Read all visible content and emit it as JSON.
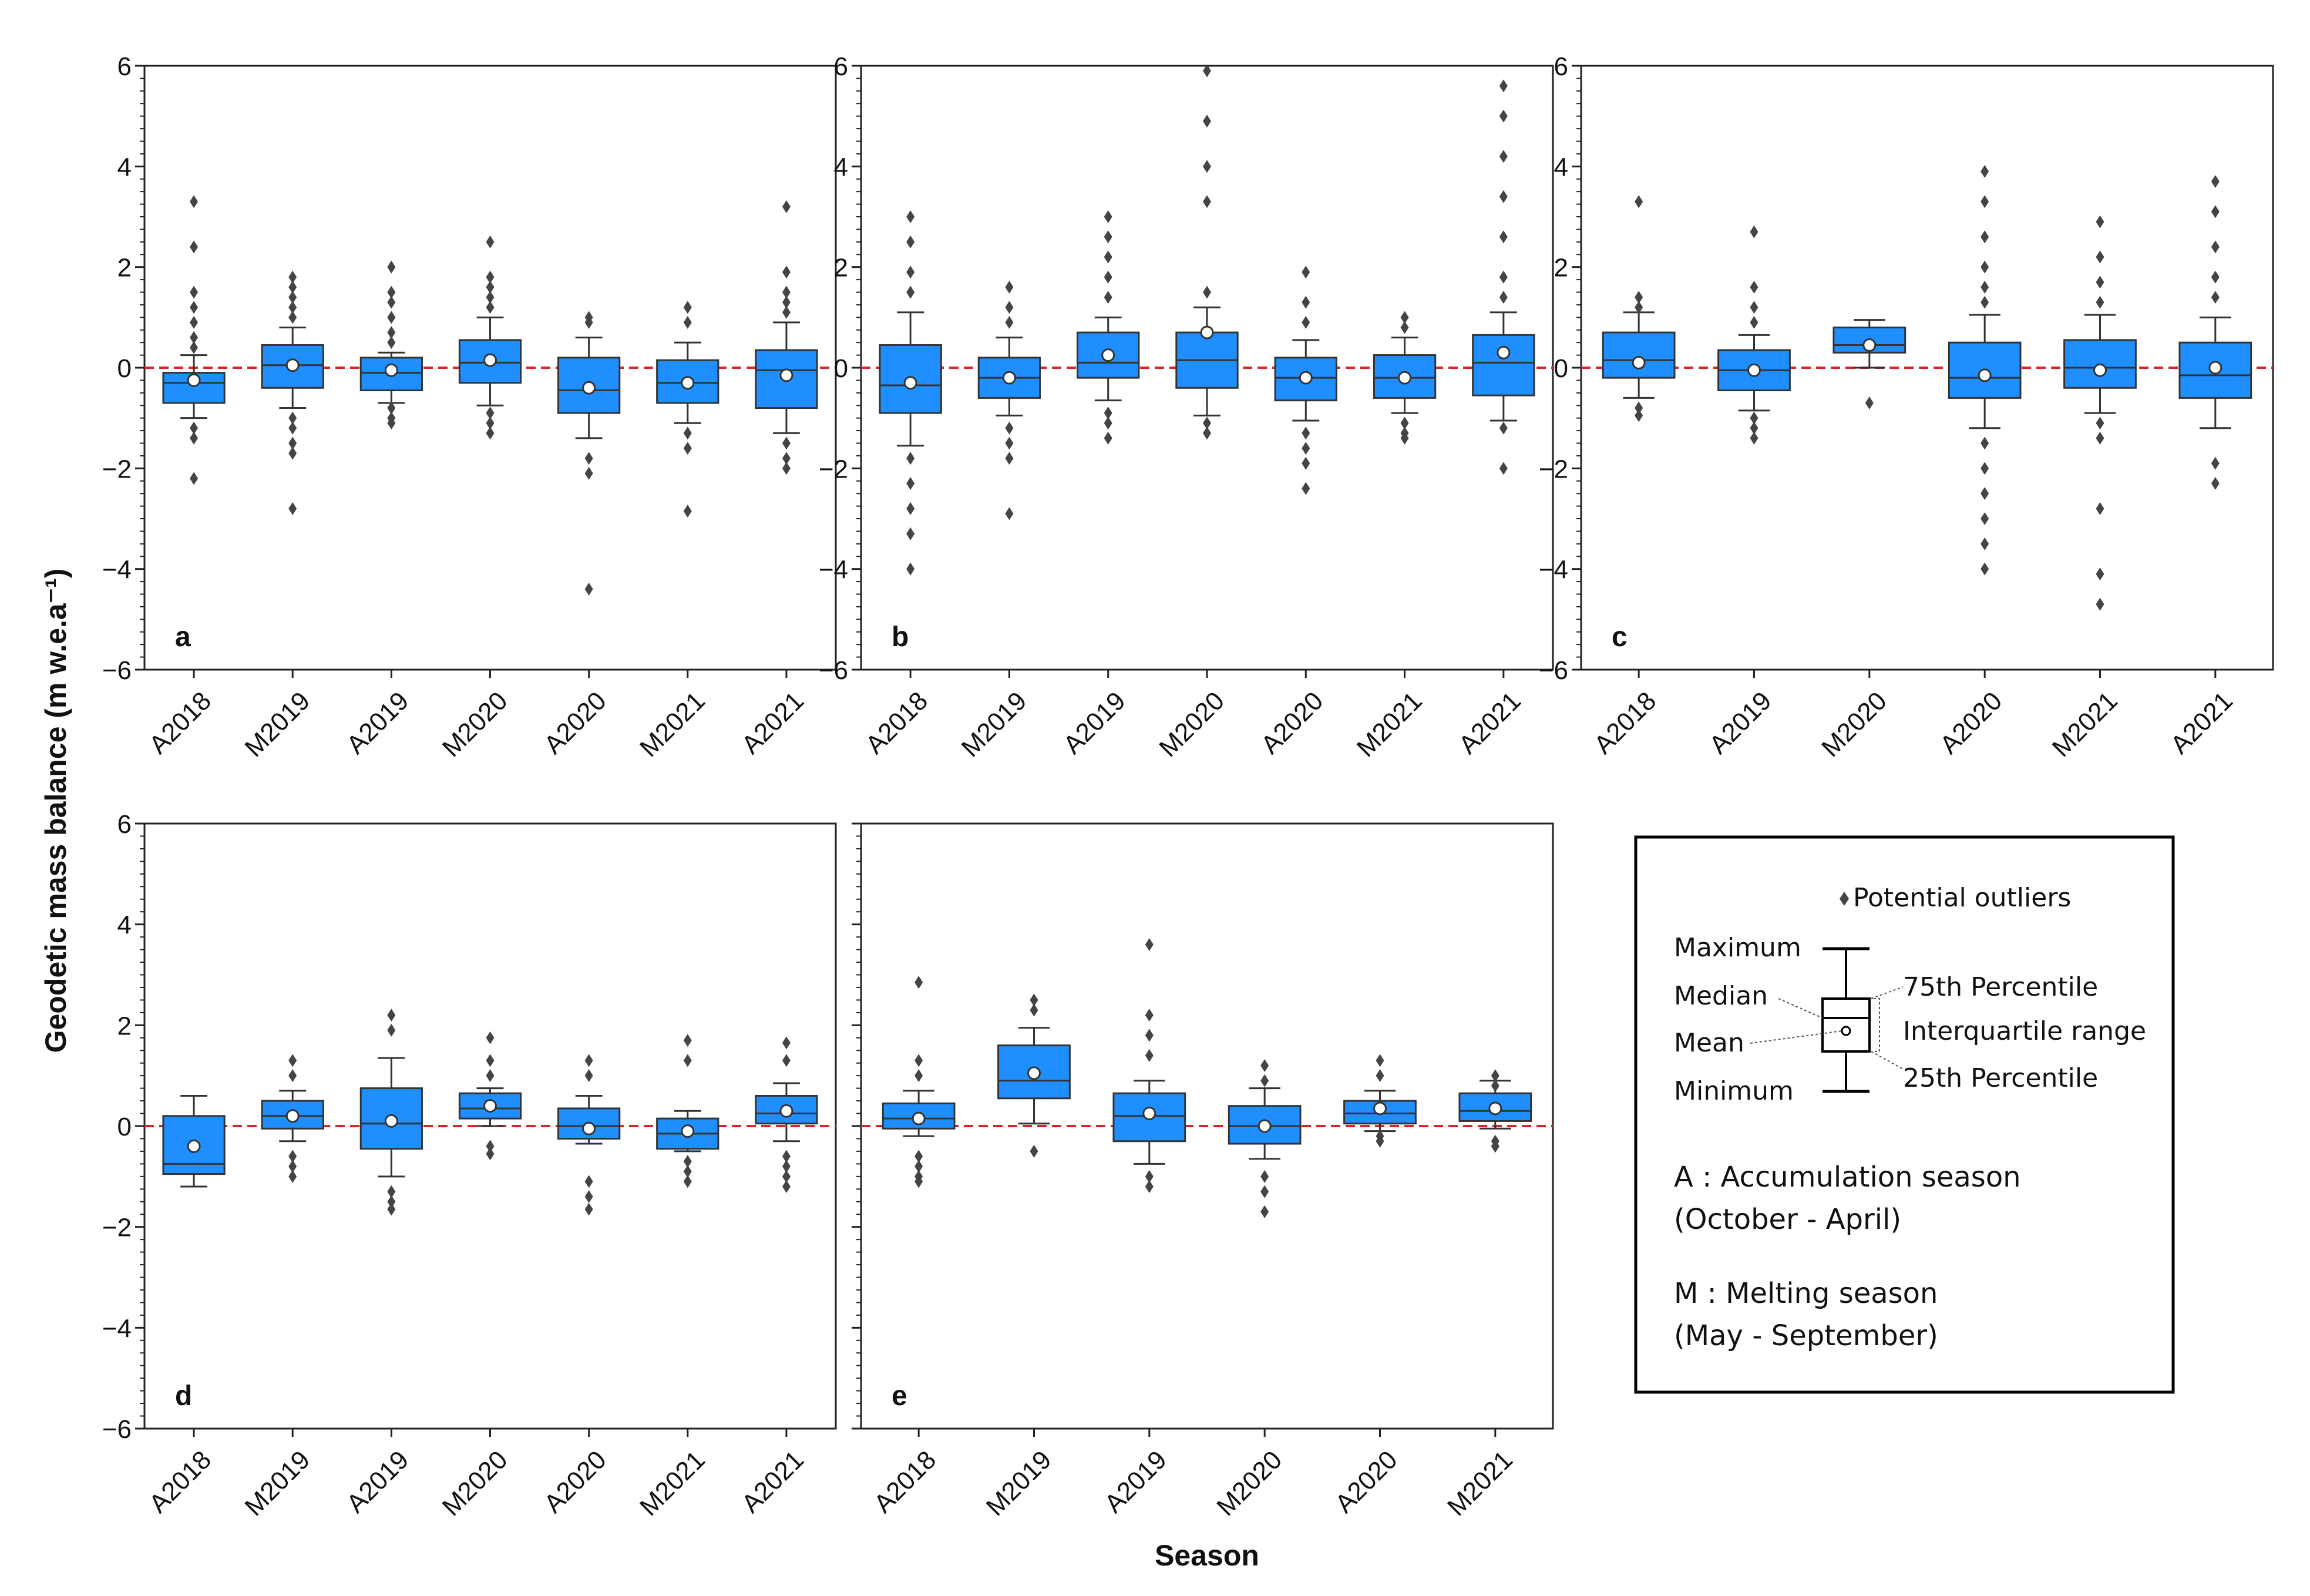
{
  "figure": {
    "ylabel": "Geodetic mass balance (m w.e.a⁻¹)",
    "xlabel": "Season",
    "legend": {
      "outliers": "Potential outliers",
      "maximum": "Maximum",
      "median": "Median",
      "mean": "Mean",
      "minimum": "Minimum",
      "p75": "75th Percentile",
      "iqr": "Interquartile range",
      "p25": "25th Percentile",
      "season_a_line1": "A : Accumulation season",
      "season_a_line2": "(October - April)",
      "season_m_line1": "M : Melting season",
      "season_m_line2": "(May - September)"
    }
  },
  "chart_data": [
    {
      "type": "box",
      "panel_label": "a",
      "ylim": [
        -6,
        6
      ],
      "yticks": [
        -6,
        -4,
        -2,
        0,
        2,
        4,
        6
      ],
      "box_color": "#1f8fff",
      "reference_line": {
        "y": 0,
        "color": "#d62728"
      },
      "categories": [
        "A2018",
        "M2019",
        "A2019",
        "M2020",
        "A2020",
        "M2021",
        "A2021"
      ],
      "boxes": [
        {
          "q1": -0.7,
          "median": -0.3,
          "q3": -0.1,
          "mean": -0.25,
          "min": -1.0,
          "max": 0.25,
          "outliers": [
            3.3,
            2.4,
            1.5,
            1.2,
            0.9,
            0.6,
            0.4,
            -1.2,
            -1.4,
            -2.2
          ]
        },
        {
          "q1": -0.4,
          "median": 0.05,
          "q3": 0.45,
          "mean": 0.05,
          "min": -0.8,
          "max": 0.8,
          "outliers": [
            1.8,
            1.6,
            1.4,
            1.2,
            1.0,
            -1.0,
            -1.2,
            -1.5,
            -1.7,
            -2.8
          ]
        },
        {
          "q1": -0.45,
          "median": -0.1,
          "q3": 0.2,
          "mean": -0.05,
          "min": -0.7,
          "max": 0.3,
          "outliers": [
            2.0,
            1.5,
            1.3,
            1.0,
            0.7,
            0.5,
            -0.8,
            -1.0,
            -1.1
          ]
        },
        {
          "q1": -0.3,
          "median": 0.1,
          "q3": 0.55,
          "mean": 0.15,
          "min": -0.75,
          "max": 1.0,
          "outliers": [
            2.5,
            1.8,
            1.6,
            1.4,
            1.2,
            -0.9,
            -1.1,
            -1.3
          ]
        },
        {
          "q1": -0.9,
          "median": -0.45,
          "q3": 0.2,
          "mean": -0.4,
          "min": -1.4,
          "max": 0.6,
          "outliers": [
            1.0,
            0.9,
            -1.8,
            -2.1,
            -4.4
          ]
        },
        {
          "q1": -0.7,
          "median": -0.3,
          "q3": 0.15,
          "mean": -0.3,
          "min": -1.1,
          "max": 0.5,
          "outliers": [
            1.2,
            0.9,
            -1.3,
            -1.6,
            -2.85
          ]
        },
        {
          "q1": -0.8,
          "median": -0.05,
          "q3": 0.35,
          "mean": -0.15,
          "min": -1.3,
          "max": 0.9,
          "outliers": [
            3.2,
            1.9,
            1.5,
            1.3,
            1.1,
            -1.5,
            -1.8,
            -2.0
          ]
        }
      ]
    },
    {
      "type": "box",
      "panel_label": "b",
      "ylim": [
        -6,
        6
      ],
      "yticks": [
        -6,
        -4,
        -2,
        0,
        2,
        4,
        6
      ],
      "box_color": "#1f8fff",
      "reference_line": {
        "y": 0,
        "color": "#d62728"
      },
      "categories": [
        "A2018",
        "M2019",
        "A2019",
        "M2020",
        "A2020",
        "M2021",
        "A2021"
      ],
      "boxes": [
        {
          "q1": -0.9,
          "median": -0.35,
          "q3": 0.45,
          "mean": -0.3,
          "min": -1.55,
          "max": 1.1,
          "outliers": [
            3.0,
            2.5,
            1.9,
            1.5,
            -1.8,
            -2.3,
            -2.8,
            -3.3,
            -4.0
          ]
        },
        {
          "q1": -0.6,
          "median": -0.2,
          "q3": 0.2,
          "mean": -0.2,
          "min": -0.95,
          "max": 0.6,
          "outliers": [
            1.6,
            1.2,
            0.9,
            -1.2,
            -1.5,
            -1.8,
            -2.9
          ]
        },
        {
          "q1": -0.2,
          "median": 0.1,
          "q3": 0.7,
          "mean": 0.25,
          "min": -0.65,
          "max": 1.0,
          "outliers": [
            3.0,
            2.6,
            2.2,
            1.8,
            1.4,
            -0.9,
            -1.1,
            -1.4
          ]
        },
        {
          "q1": -0.4,
          "median": 0.15,
          "q3": 0.7,
          "mean": 0.7,
          "min": -0.95,
          "max": 1.2,
          "outliers": [
            5.9,
            4.9,
            4.0,
            3.3,
            1.5,
            -1.1,
            -1.3
          ]
        },
        {
          "q1": -0.65,
          "median": -0.2,
          "q3": 0.2,
          "mean": -0.2,
          "min": -1.05,
          "max": 0.55,
          "outliers": [
            1.9,
            1.3,
            0.9,
            -1.3,
            -1.6,
            -1.9,
            -2.4
          ]
        },
        {
          "q1": -0.6,
          "median": -0.2,
          "q3": 0.25,
          "mean": -0.2,
          "min": -0.9,
          "max": 0.6,
          "outliers": [
            1.0,
            0.8,
            -1.1,
            -1.3,
            -1.4
          ]
        },
        {
          "q1": -0.55,
          "median": 0.1,
          "q3": 0.65,
          "mean": 0.3,
          "min": -1.05,
          "max": 1.1,
          "outliers": [
            5.6,
            5.0,
            4.2,
            3.4,
            2.6,
            1.8,
            1.4,
            -1.2,
            -2.0
          ]
        }
      ]
    },
    {
      "type": "box",
      "panel_label": "c",
      "ylim": [
        -6,
        6
      ],
      "yticks": [
        -6,
        -4,
        -2,
        0,
        2,
        4,
        6
      ],
      "box_color": "#1f8fff",
      "reference_line": {
        "y": 0,
        "color": "#d62728"
      },
      "categories": [
        "A2018",
        "A2019",
        "M2020",
        "A2020",
        "M2021",
        "A2021"
      ],
      "boxes": [
        {
          "q1": -0.2,
          "median": 0.15,
          "q3": 0.7,
          "mean": 0.1,
          "min": -0.6,
          "max": 1.1,
          "outliers": [
            3.3,
            1.4,
            1.2,
            -0.8,
            -0.95
          ]
        },
        {
          "q1": -0.45,
          "median": -0.05,
          "q3": 0.35,
          "mean": -0.05,
          "min": -0.85,
          "max": 0.65,
          "outliers": [
            2.7,
            1.6,
            1.2,
            0.9,
            -1.0,
            -1.2,
            -1.4
          ]
        },
        {
          "q1": 0.3,
          "median": 0.45,
          "q3": 0.8,
          "mean": 0.45,
          "min": 0.0,
          "max": 0.95,
          "outliers": [
            -0.7
          ]
        },
        {
          "q1": -0.6,
          "median": -0.2,
          "q3": 0.5,
          "mean": -0.15,
          "min": -1.2,
          "max": 1.05,
          "outliers": [
            3.9,
            3.3,
            2.6,
            2.0,
            1.6,
            1.3,
            -1.5,
            -2.0,
            -2.5,
            -3.0,
            -3.5,
            -4.0
          ]
        },
        {
          "q1": -0.4,
          "median": 0.0,
          "q3": 0.55,
          "mean": -0.05,
          "min": -0.9,
          "max": 1.05,
          "outliers": [
            2.9,
            2.2,
            1.7,
            1.3,
            -1.1,
            -1.4,
            -2.8,
            -4.1,
            -4.7
          ]
        },
        {
          "q1": -0.6,
          "median": -0.15,
          "q3": 0.5,
          "mean": 0.0,
          "min": -1.2,
          "max": 1.0,
          "outliers": [
            3.7,
            3.1,
            2.4,
            1.8,
            1.4,
            -1.9,
            -2.3
          ]
        }
      ]
    },
    {
      "type": "box",
      "panel_label": "d",
      "ylim": [
        -6,
        6
      ],
      "yticks": [
        -6,
        -4,
        -2,
        0,
        2,
        4,
        6
      ],
      "box_color": "#1f8fff",
      "reference_line": {
        "y": 0,
        "color": "#d62728"
      },
      "categories": [
        "A2018",
        "M2019",
        "A2019",
        "M2020",
        "A2020",
        "M2021",
        "A2021"
      ],
      "boxes": [
        {
          "q1": -0.95,
          "median": -0.75,
          "q3": 0.2,
          "mean": -0.4,
          "min": -1.2,
          "max": 0.6,
          "outliers": []
        },
        {
          "q1": -0.05,
          "median": 0.2,
          "q3": 0.5,
          "mean": 0.2,
          "min": -0.3,
          "max": 0.7,
          "outliers": [
            1.3,
            1.0,
            -0.6,
            -0.8,
            -1.0
          ]
        },
        {
          "q1": -0.45,
          "median": 0.05,
          "q3": 0.75,
          "mean": 0.1,
          "min": -1.0,
          "max": 1.35,
          "outliers": [
            2.2,
            1.9,
            -1.3,
            -1.5,
            -1.65
          ]
        },
        {
          "q1": 0.15,
          "median": 0.35,
          "q3": 0.65,
          "mean": 0.4,
          "min": 0.0,
          "max": 0.75,
          "outliers": [
            1.75,
            1.3,
            1.0,
            -0.4,
            -0.55
          ]
        },
        {
          "q1": -0.25,
          "median": 0.0,
          "q3": 0.35,
          "mean": -0.05,
          "min": -0.35,
          "max": 0.6,
          "outliers": [
            1.3,
            1.0,
            -1.1,
            -1.4,
            -1.65
          ]
        },
        {
          "q1": -0.45,
          "median": -0.15,
          "q3": 0.15,
          "mean": -0.1,
          "min": -0.5,
          "max": 0.3,
          "outliers": [
            1.7,
            1.3,
            -0.7,
            -0.9,
            -1.1
          ]
        },
        {
          "q1": 0.05,
          "median": 0.25,
          "q3": 0.6,
          "mean": 0.3,
          "min": -0.3,
          "max": 0.85,
          "outliers": [
            1.65,
            1.3,
            -0.6,
            -0.8,
            -1.0,
            -1.2
          ]
        }
      ]
    },
    {
      "type": "box",
      "panel_label": "e",
      "ylim": [
        -6,
        6
      ],
      "yticks": [
        -6,
        -4,
        -2,
        0,
        2,
        4,
        6
      ],
      "box_color": "#1f8fff",
      "reference_line": {
        "y": 0,
        "color": "#d62728"
      },
      "categories": [
        "A2018",
        "M2019",
        "A2019",
        "M2020",
        "A2020",
        "M2021"
      ],
      "boxes": [
        {
          "q1": -0.05,
          "median": 0.15,
          "q3": 0.45,
          "mean": 0.15,
          "min": -0.2,
          "max": 0.7,
          "outliers": [
            2.85,
            1.3,
            1.0,
            -0.6,
            -0.8,
            -1.0,
            -1.1
          ]
        },
        {
          "q1": 0.55,
          "median": 0.9,
          "q3": 1.6,
          "mean": 1.05,
          "min": 0.05,
          "max": 1.95,
          "outliers": [
            2.5,
            2.3,
            -0.5
          ]
        },
        {
          "q1": -0.3,
          "median": 0.2,
          "q3": 0.65,
          "mean": 0.25,
          "min": -0.75,
          "max": 0.9,
          "outliers": [
            3.6,
            2.2,
            1.8,
            1.4,
            -1.0,
            -1.2
          ]
        },
        {
          "q1": -0.35,
          "median": 0.0,
          "q3": 0.4,
          "mean": 0.0,
          "min": -0.65,
          "max": 0.75,
          "outliers": [
            1.2,
            0.9,
            -1.0,
            -1.3,
            -1.7
          ]
        },
        {
          "q1": 0.05,
          "median": 0.25,
          "q3": 0.5,
          "mean": 0.35,
          "min": -0.1,
          "max": 0.7,
          "outliers": [
            1.3,
            1.0,
            -0.2,
            -0.3
          ]
        },
        {
          "q1": 0.1,
          "median": 0.3,
          "q3": 0.65,
          "mean": 0.35,
          "min": -0.05,
          "max": 0.9,
          "outliers": [
            1.0,
            0.8,
            -0.3,
            -0.4
          ]
        }
      ]
    }
  ]
}
